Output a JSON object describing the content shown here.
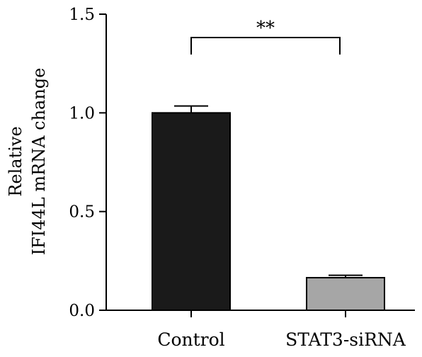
{
  "chart_data": {
    "type": "bar",
    "categories": [
      "Control",
      "STAT3-siRNA"
    ],
    "values": [
      1.0,
      0.165
    ],
    "error": [
      0.035,
      0.012
    ],
    "bar_colors": [
      "#1a1a1a",
      "#a6a6a6"
    ],
    "ylabel_lines": [
      "Relative",
      "IFI44L mRNA change"
    ],
    "ylim": [
      0,
      1.5
    ],
    "yticks": [
      "0.0",
      "0.5",
      "1.0",
      "1.5"
    ],
    "significance": "**",
    "grid": false,
    "legend": "none"
  }
}
